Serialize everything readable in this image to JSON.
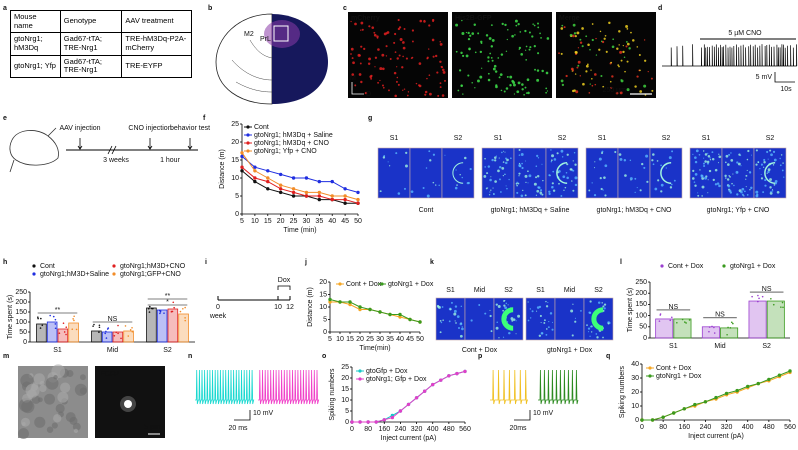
{
  "panel_labels": [
    "a",
    "b",
    "c",
    "d",
    "e",
    "f",
    "g",
    "h",
    "i",
    "j",
    "k",
    "l",
    "m",
    "n",
    "o",
    "p",
    "q"
  ],
  "table": {
    "header": [
      "Mouse name",
      "Genotype",
      "AAV treatment"
    ],
    "rows": [
      [
        "gtoNrg1; hM3Dq",
        "Gad67-tTA; TRE-Nrg1",
        "TRE-hM3Dq-P2A-mCherry"
      ],
      [
        "gtoNrg1; Yfp",
        "Gad67-tTA; TRE-Nrg1",
        "TRE-EYFP"
      ]
    ]
  },
  "brain": {
    "labels": [
      "M2",
      "PrL"
    ]
  },
  "images_c": {
    "channels": [
      "mCherry",
      "His2B-GFP",
      "Merge"
    ],
    "axes": [
      "M",
      "D"
    ],
    "scale": "250 µm"
  },
  "trace_d": {
    "drug": "5 µM CNO",
    "scale_v": "5 mV",
    "scale_t": "10s"
  },
  "timeline_e": {
    "steps": [
      "AAV injection",
      "CNO injection",
      "behavior test"
    ],
    "intervals": [
      "3 weeks",
      "1 hour"
    ]
  },
  "heatmaps_g": {
    "zones": [
      "S1",
      "S2"
    ],
    "groups": [
      "Cont",
      "gtoNrg1; hM3Dq + Saline",
      "gtoNrg1; hM3Dq + CNO",
      "gtoNrg1; Yfp + CNO"
    ]
  },
  "timeline_i": {
    "ticks": [
      0,
      10,
      12
    ],
    "unit": "week",
    "treatment": "Dox"
  },
  "heatmaps_k": {
    "zones": [
      "S1",
      "Mid",
      "S2"
    ],
    "groups": [
      "Cont + Dox",
      "gtoNrg1 + Dox"
    ]
  },
  "image_m": {
    "channel": "EGFP",
    "scale": "5 µm"
  },
  "traces_n": {
    "scale_v": "10 mV",
    "scale_t": "20 ms"
  },
  "traces_p": {
    "scale_v": "10 mV",
    "scale_t": "20ms"
  },
  "chart_data": [
    {
      "type": "line",
      "xlabel": "Time (min)",
      "ylabel": "Distance (m)",
      "x": [
        5,
        10,
        15,
        20,
        25,
        30,
        35,
        40,
        45,
        50
      ],
      "xlim": [
        5,
        50
      ],
      "xticks": [
        5,
        10,
        15,
        20,
        25,
        30,
        35,
        40,
        45,
        50
      ],
      "ylim": [
        0,
        25
      ],
      "yticks": [
        0,
        5,
        10,
        15,
        20,
        25
      ],
      "legend": "upper left",
      "series": [
        {
          "name": "Cont",
          "color": "#111111",
          "values": [
            12,
            9,
            7,
            6,
            5,
            5,
            4,
            4,
            3,
            3
          ]
        },
        {
          "name": "gtoNrg1; hM3Dq + Saline",
          "color": "#1f2ee0",
          "values": [
            16,
            13,
            12,
            11,
            10,
            10,
            9,
            9,
            7,
            6
          ]
        },
        {
          "name": "gtoNrg1; hM3Dq + CNO",
          "color": "#e02020",
          "values": [
            13,
            10,
            9,
            7,
            6,
            5,
            5,
            4,
            4,
            3
          ]
        },
        {
          "name": "gtoNrg1; Yfp + CNO",
          "color": "#f28c28",
          "values": [
            17,
            12,
            10,
            8,
            7,
            6,
            6,
            5,
            5,
            4
          ]
        }
      ]
    },
    {
      "type": "bar",
      "ylabel": "Time spent (s)",
      "categories": [
        "S1",
        "Mid",
        "S2"
      ],
      "ylim": [
        0,
        250
      ],
      "yticks": [
        0,
        50,
        100,
        150,
        200,
        250
      ],
      "legend": "top",
      "significance": [
        [
          "**"
        ],
        [
          "NS"
        ],
        [
          "**",
          "*"
        ]
      ],
      "series": [
        {
          "name": "Cont",
          "color": "#111111",
          "values": [
            90,
            55,
            170
          ]
        },
        {
          "name": "gtoNrg1;hM3D+Saline",
          "color": "#1f2ee0",
          "values": [
            100,
            50,
            160
          ]
        },
        {
          "name": "gtoNrg1;hM3D+CNO",
          "color": "#e02020",
          "values": [
            65,
            50,
            165
          ]
        },
        {
          "name": "gtoNrg1;GFP+CNO",
          "color": "#f28c28",
          "values": [
            95,
            55,
            140
          ]
        }
      ]
    },
    {
      "type": "line",
      "xlabel": "Time(min)",
      "ylabel": "Distance (m)",
      "x": [
        5,
        10,
        15,
        20,
        25,
        30,
        35,
        40,
        45,
        50
      ],
      "xlim": [
        5,
        50
      ],
      "xticks": [
        5,
        10,
        15,
        20,
        25,
        30,
        35,
        40,
        45,
        50
      ],
      "ylim": [
        0,
        20
      ],
      "yticks": [
        0,
        5,
        10,
        15,
        20
      ],
      "legend": "top",
      "series": [
        {
          "name": "Cont + Dox",
          "color": "#f5a623",
          "values": [
            12,
            12,
            11,
            9,
            9,
            8,
            7,
            6,
            5,
            4
          ]
        },
        {
          "name": "gtoNrg1 + Dox",
          "color": "#3a9a1e",
          "values": [
            13,
            12,
            12,
            10,
            9,
            8,
            7,
            7,
            5,
            4
          ]
        }
      ]
    },
    {
      "type": "bar",
      "ylabel": "Time spent (s)",
      "categories": [
        "S1",
        "Mid",
        "S2"
      ],
      "ylim": [
        0,
        250
      ],
      "yticks": [
        0,
        50,
        100,
        150,
        200,
        250
      ],
      "legend": "top",
      "significance": [
        [
          "NS"
        ],
        [
          "NS"
        ],
        [
          "NS"
        ]
      ],
      "series": [
        {
          "name": "Cont + Dox",
          "color": "#9b3fd0",
          "values": [
            85,
            50,
            165
          ]
        },
        {
          "name": "gtoNrg1 + Dox",
          "color": "#3a9a1e",
          "values": [
            85,
            45,
            165
          ]
        }
      ]
    },
    {
      "type": "line",
      "xlabel": "Inject current (pA)",
      "ylabel": "Spiking numbers",
      "x": [
        0,
        40,
        80,
        120,
        160,
        200,
        240,
        280,
        320,
        360,
        400,
        440,
        480,
        520,
        560
      ],
      "xlim": [
        0,
        560
      ],
      "xticks": [
        0,
        80,
        160,
        240,
        320,
        400,
        480,
        560
      ],
      "ylim": [
        0,
        25
      ],
      "yticks": [
        0,
        5,
        10,
        15,
        20,
        25
      ],
      "legend": "upper left",
      "series": [
        {
          "name": "gtoGfp + Dox",
          "color": "#19c8c8",
          "values": [
            0,
            0,
            0,
            0,
            1,
            3,
            5,
            8,
            11,
            14,
            17,
            19,
            21,
            22,
            23
          ]
        },
        {
          "name": "gtoNrg1; Gfp + Dox",
          "color": "#e040c8",
          "values": [
            0,
            0,
            0,
            0,
            1,
            2,
            5,
            8,
            11,
            14,
            17,
            19,
            21,
            22,
            23
          ]
        }
      ]
    },
    {
      "type": "line",
      "xlabel": "Inject current (pA)",
      "ylabel": "Spiking numbers",
      "x": [
        0,
        40,
        80,
        120,
        160,
        200,
        240,
        280,
        320,
        360,
        400,
        440,
        480,
        520,
        560
      ],
      "xlim": [
        0,
        560
      ],
      "xticks": [
        0,
        80,
        160,
        240,
        320,
        400,
        480,
        560
      ],
      "ylim": [
        0,
        40
      ],
      "yticks": [
        0,
        10,
        20,
        30,
        40
      ],
      "legend": "upper left",
      "series": [
        {
          "name": "Cont + Dox",
          "color": "#f5a623",
          "values": [
            0,
            0,
            2,
            5,
            8,
            10,
            13,
            15,
            18,
            20,
            23,
            26,
            28,
            31,
            34
          ]
        },
        {
          "name": "gtoNrg1 + Dox",
          "color": "#3a9a1e",
          "values": [
            0,
            0,
            2,
            5,
            8,
            11,
            13,
            16,
            19,
            21,
            24,
            26,
            29,
            32,
            35
          ]
        }
      ]
    }
  ]
}
